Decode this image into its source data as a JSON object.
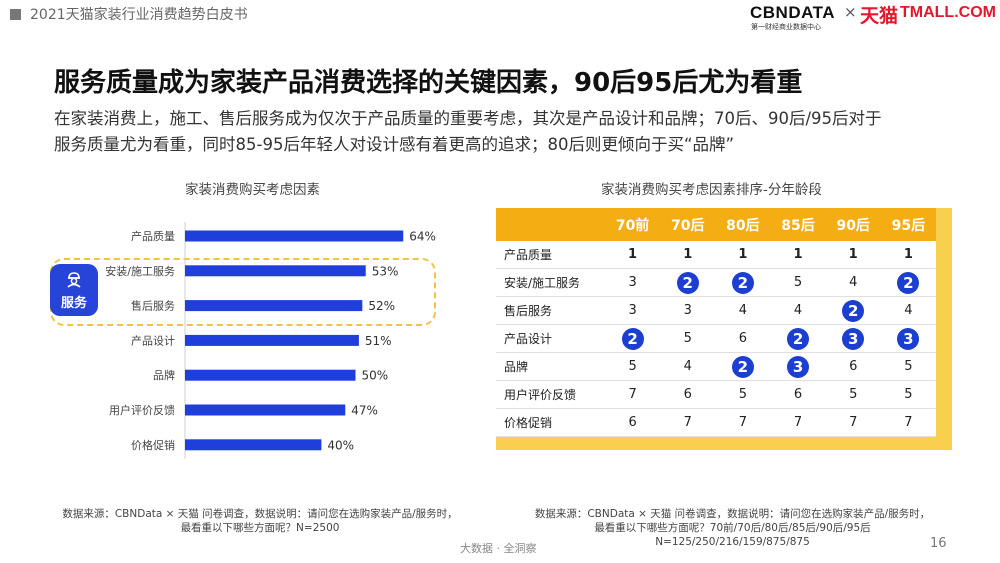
{
  "header": {
    "doc_title": "2021天猫家装行业消费趋势白皮书"
  },
  "logo": {
    "cbndata": "CBNDATA",
    "cbndata_sub": "第一财经商业数据中心",
    "times": "×",
    "tmall_cn": "天猫",
    "tmall_en": "TMALL.COM"
  },
  "headline": "服务质量成为家装产品消费选择的关键因素，90后95后尤为看重",
  "subtitle_lines": [
    "在家装消费上，施工、售后服务成为仅次于产品质量的重要考虑，其次是产品设计和品牌；70后、90后/95后对于",
    "服务质量尤为看重，同时85-95后年轻人对设计感有着更高的追求；80后则更倾向于买“品牌”"
  ],
  "service_tag": "服务",
  "chart_data": [
    {
      "type": "bar",
      "orientation": "horizontal",
      "title": "家装消费购买考虑因素",
      "categories": [
        "产品质量",
        "安装/施工服务",
        "售后服务",
        "产品设计",
        "品牌",
        "用户评价反馈",
        "价格促销"
      ],
      "values": [
        64,
        53,
        52,
        51,
        50,
        47,
        40
      ],
      "value_labels": [
        "64%",
        "53%",
        "52%",
        "51%",
        "50%",
        "47%",
        "40%"
      ],
      "unit": "%",
      "xlim": [
        0,
        100
      ],
      "color": "#1f3fdc"
    },
    {
      "type": "table",
      "title": "家装消费购买考虑因素排序-分年龄段",
      "columns": [
        "70前",
        "70后",
        "80后",
        "85后",
        "90后",
        "95后"
      ],
      "rows": [
        {
          "label": "产品质量",
          "values": [
            1,
            1,
            1,
            1,
            1,
            1
          ],
          "highlight": [
            false,
            false,
            false,
            false,
            false,
            false
          ]
        },
        {
          "label": "安装/施工服务",
          "values": [
            3,
            2,
            2,
            5,
            4,
            2
          ],
          "highlight": [
            false,
            true,
            true,
            false,
            false,
            true
          ]
        },
        {
          "label": "售后服务",
          "values": [
            3,
            3,
            4,
            4,
            2,
            4
          ],
          "highlight": [
            false,
            false,
            false,
            false,
            true,
            false
          ]
        },
        {
          "label": "产品设计",
          "values": [
            2,
            5,
            6,
            2,
            3,
            3
          ],
          "highlight": [
            true,
            false,
            false,
            true,
            true,
            true
          ]
        },
        {
          "label": "品牌",
          "values": [
            5,
            4,
            2,
            3,
            6,
            5
          ],
          "highlight": [
            false,
            false,
            true,
            true,
            false,
            false
          ]
        },
        {
          "label": "用户评价反馈",
          "values": [
            7,
            6,
            5,
            6,
            5,
            5
          ],
          "highlight": [
            false,
            false,
            false,
            false,
            false,
            false
          ]
        },
        {
          "label": "价格促销",
          "values": [
            6,
            7,
            7,
            7,
            7,
            7
          ],
          "highlight": [
            false,
            false,
            false,
            false,
            false,
            false
          ]
        }
      ],
      "colors": {
        "header": "#f4ae13",
        "frame": "#f9cf50",
        "highlight": "#1c3ed1"
      }
    }
  ],
  "notes": {
    "left": [
      "数据来源：CBNData × 天猫 问卷调查，数据说明：请问您在选购家装产品/服务时，",
      "最看重以下哪些方面呢？N=2500"
    ],
    "right": [
      "数据来源：CBNData × 天猫 问卷调查，数据说明：请问您在选购家装产品/服务时，",
      "最看重以下哪些方面呢？70前/70后/80后/85后/90后/95后",
      "N=125/250/216/159/875/875"
    ]
  },
  "footer": {
    "brand": "大数据 · 全洞察",
    "page": "16"
  }
}
